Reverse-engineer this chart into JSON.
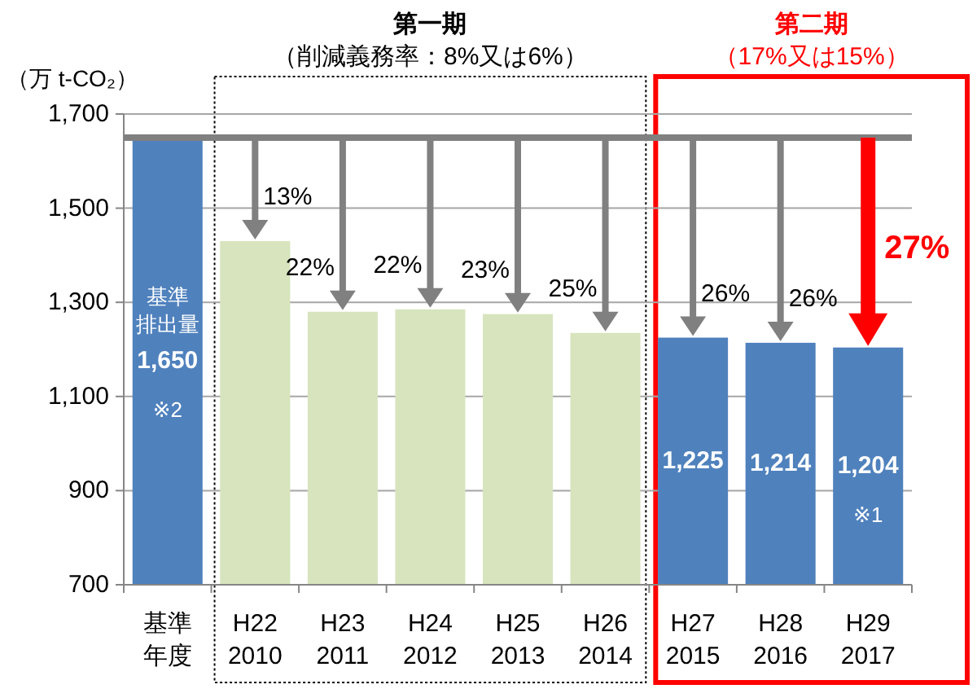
{
  "chart_data": {
    "type": "bar",
    "ylabel": "（万 t-CO₂）",
    "categories": [
      "基準年度",
      "H22\n2010",
      "H23\n2011",
      "H24\n2012",
      "H25\n2013",
      "H26\n2014",
      "H27\n2015",
      "H28\n2016",
      "H29\n2017"
    ],
    "series": [
      {
        "name": "基準排出量",
        "color": "#4f81bd",
        "values": [
          1650,
          null,
          null,
          null,
          null,
          null,
          null,
          null,
          null
        ],
        "value_labels": [
          "1,650\n※2",
          null,
          null,
          null,
          null,
          null,
          null,
          null,
          null
        ]
      },
      {
        "color": "#d7e4bd",
        "values": [
          null,
          1430,
          1280,
          1285,
          1275,
          1235,
          null,
          null,
          null
        ]
      },
      {
        "color": "#4f81bd",
        "values": [
          null,
          null,
          null,
          null,
          null,
          null,
          1225,
          1214,
          1204
        ],
        "value_labels": [
          null,
          null,
          null,
          null,
          null,
          null,
          "1,225",
          "1,214",
          "1,204\n※1"
        ]
      }
    ],
    "ylim": [
      700,
      1700
    ],
    "yticks": [
      700,
      900,
      {
        "value": 1100,
        "label": "1,100"
      },
      {
        "value": 1300,
        "label": "1,300"
      },
      {
        "value": 1500,
        "label": "1,500"
      },
      {
        "value": 1700,
        "label": "1,700"
      }
    ],
    "grid": "y",
    "ref_lines": [
      {
        "axis": "y",
        "value": 1650,
        "color": "#808080"
      }
    ],
    "bands": [
      {
        "axis": "x",
        "from": "H22\n2010",
        "to": "H26\n2014",
        "label": "第一期（削減義務率：8%又は6%）",
        "color": "#000000"
      },
      {
        "axis": "x",
        "from": "H27\n2015",
        "to": "H29\n2017",
        "label": "第二期（17%又は15%）",
        "color": "#ff0000"
      }
    ],
    "annotations": [
      {
        "text": "13%",
        "x": "H22\n2010",
        "y": 1430
      },
      {
        "text": "22%",
        "x": "H23\n2011",
        "y": 1280
      },
      {
        "text": "22%",
        "x": "H24\n2012",
        "y": 1285
      },
      {
        "text": "23%",
        "x": "H25\n2013",
        "y": 1275
      },
      {
        "text": "25%",
        "x": "H26\n2014",
        "y": 1235
      },
      {
        "text": "26%",
        "x": "H27\n2015",
        "y": 1225
      },
      {
        "text": "26%",
        "x": "H28\n2016",
        "y": 1214
      },
      {
        "text": "27%",
        "x": "H29\n2017",
        "y": 1204
      }
    ]
  }
}
